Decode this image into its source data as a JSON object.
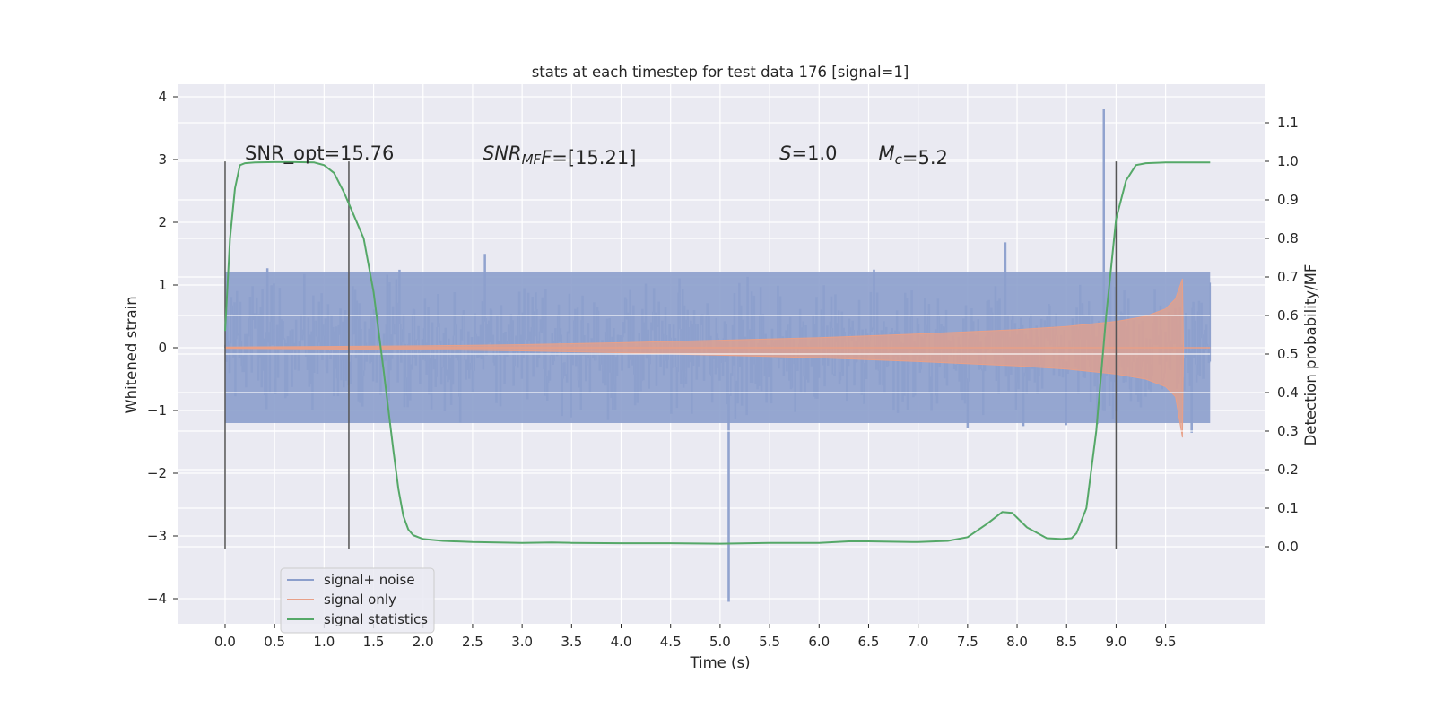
{
  "chart_data": {
    "type": "line",
    "title": "stats at each timestep for test data 176 [signal=1]",
    "xlabel": "Time (s)",
    "ylabel": "Whitened strain",
    "ylabel_right": "Detection probability/MF",
    "xlim": [
      -0.48,
      10.5
    ],
    "ylim": [
      -4.4,
      4.2
    ],
    "ylim_right": [
      -0.2,
      1.2
    ],
    "xticks": [
      0.0,
      0.5,
      1.0,
      1.5,
      2.0,
      2.5,
      3.0,
      3.5,
      4.0,
      4.5,
      5.0,
      5.5,
      6.0,
      6.5,
      7.0,
      7.5,
      8.0,
      8.5,
      9.0,
      9.5
    ],
    "xtick_labels": [
      "0.0",
      "0.5",
      "1.0",
      "1.5",
      "2.0",
      "2.5",
      "3.0",
      "3.5",
      "4.0",
      "4.5",
      "5.0",
      "5.5",
      "6.0",
      "6.5",
      "7.0",
      "7.5",
      "8.0",
      "8.5",
      "9.0",
      "9.5"
    ],
    "yticks": [
      4,
      3,
      2,
      1,
      0,
      -1,
      -2,
      -3,
      -4
    ],
    "ytick_labels": [
      "4",
      "3",
      "2",
      "1",
      "0",
      "−1",
      "−2",
      "−3",
      "−4"
    ],
    "yticks_right": [
      1.1,
      1.0,
      0.9,
      0.8,
      0.7,
      0.6,
      0.5,
      0.4,
      0.3,
      0.2,
      0.1,
      0.0
    ],
    "ytick_labels_right": [
      "1.1",
      "1.0",
      "0.9",
      "0.8",
      "0.7",
      "0.6",
      "0.5",
      "0.4",
      "0.3",
      "0.2",
      "0.1",
      "0.0"
    ],
    "grid": true,
    "legend_position": "lower-left",
    "colors": {
      "plot_bg": "#eaeaf2",
      "grid": "#ffffff",
      "noise": "#8c9fcc",
      "signal": "#e8a088",
      "stats": "#55a868",
      "vline": "#555555"
    },
    "series": [
      {
        "name": "signal+ noise",
        "axis": "left",
        "description_of_envelope": true,
        "x_range": [
          0.0,
          9.95
        ],
        "typical_amplitude": 1.2,
        "max_value": 3.8,
        "max_at": 8.87,
        "min_value": -4.05,
        "min_at": 5.08
      },
      {
        "name": "signal only",
        "axis": "left",
        "x_range": [
          0.0,
          9.95
        ],
        "envelope_x": [
          0.0,
          1.0,
          2.0,
          3.0,
          4.0,
          5.0,
          6.0,
          7.0,
          8.0,
          8.5,
          9.0,
          9.3,
          9.5,
          9.6,
          9.67,
          9.68,
          9.95
        ],
        "envelope_y": [
          0.01,
          0.02,
          0.03,
          0.05,
          0.08,
          0.12,
          0.16,
          0.22,
          0.29,
          0.34,
          0.42,
          0.5,
          0.62,
          0.78,
          1.1,
          0.0,
          0.0
        ]
      },
      {
        "name": "signal statistics",
        "axis": "right",
        "x": [
          0.0,
          0.05,
          0.1,
          0.15,
          0.2,
          0.3,
          0.5,
          0.7,
          0.9,
          1.0,
          1.1,
          1.2,
          1.3,
          1.4,
          1.5,
          1.6,
          1.7,
          1.75,
          1.8,
          1.85,
          1.9,
          2.0,
          2.2,
          2.5,
          3.0,
          3.3,
          3.5,
          4.0,
          4.5,
          5.0,
          5.5,
          6.0,
          6.3,
          6.5,
          7.0,
          7.3,
          7.5,
          7.7,
          7.85,
          7.95,
          8.1,
          8.3,
          8.45,
          8.55,
          8.6,
          8.7,
          8.8,
          8.9,
          9.0,
          9.1,
          9.2,
          9.3,
          9.5,
          9.7,
          9.95
        ],
        "y": [
          0.56,
          0.8,
          0.93,
          0.99,
          0.995,
          0.997,
          0.998,
          0.998,
          0.997,
          0.99,
          0.97,
          0.92,
          0.86,
          0.8,
          0.66,
          0.46,
          0.25,
          0.15,
          0.08,
          0.045,
          0.03,
          0.02,
          0.015,
          0.012,
          0.01,
          0.011,
          0.01,
          0.009,
          0.009,
          0.008,
          0.01,
          0.01,
          0.014,
          0.014,
          0.012,
          0.015,
          0.025,
          0.06,
          0.09,
          0.088,
          0.05,
          0.022,
          0.02,
          0.022,
          0.035,
          0.1,
          0.3,
          0.6,
          0.85,
          0.95,
          0.99,
          0.995,
          0.997,
          0.997,
          0.997
        ]
      }
    ],
    "vertical_lines": [
      {
        "x": 0.0,
        "y_from": -3.2,
        "y_to": 2.97
      },
      {
        "x": 1.25,
        "y_from": -3.2,
        "y_to": 2.97
      },
      {
        "x": 9.0,
        "y_from": -3.2,
        "y_to": 2.97
      }
    ],
    "annotations": [
      {
        "text": "SNR_opt=15.76",
        "x": 0.2,
        "y": 3.0,
        "italic": false
      },
      {
        "text_main": "SNR",
        "text_sub": "MF",
        "text_after": "F=[15.21]",
        "x": 2.6,
        "y": 3.0
      },
      {
        "text_main": "S",
        "text_after": "=1.0",
        "x": 5.6,
        "y": 3.0
      },
      {
        "text_main": "M",
        "text_sub": "c",
        "text_after": "=5.2",
        "x": 6.6,
        "y": 3.0
      }
    ]
  }
}
